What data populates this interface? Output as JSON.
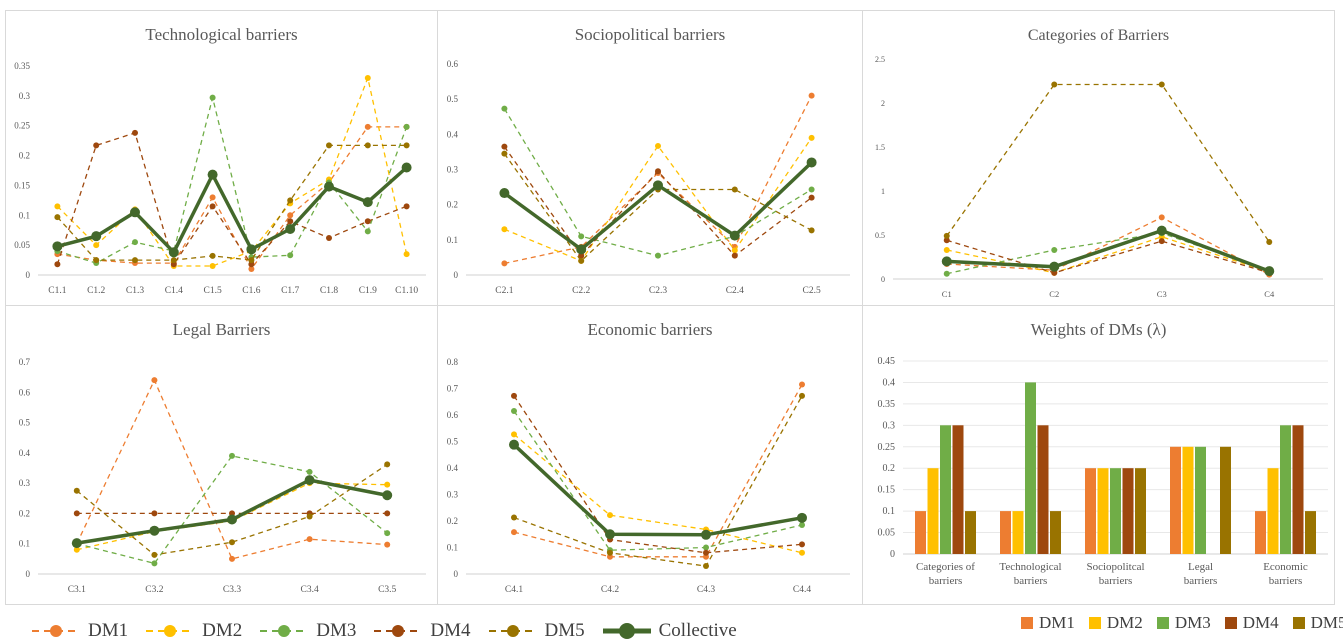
{
  "colors": {
    "DM1": "#ED7D31",
    "DM2": "#FFC000",
    "DM3": "#70AD47",
    "DM4": "#9E480E",
    "DM5": "#997300",
    "Collective": "#43682B"
  },
  "legend": {
    "series": [
      "DM1",
      "DM2",
      "DM3",
      "DM4",
      "DM5",
      "Collective"
    ],
    "bar_series": [
      "DM1",
      "DM2",
      "DM3",
      "DM4",
      "DM5"
    ]
  },
  "chart_data": [
    {
      "id": "tech",
      "type": "line",
      "title": "Technological barriers",
      "categories": [
        "C1.1",
        "C1.2",
        "C1.3",
        "C1.4",
        "C1.5",
        "C1.6",
        "C1.7",
        "C1.8",
        "C1.9",
        "C1.10"
      ],
      "yticks": [
        "0",
        "0.05",
        "0.1",
        "0.15",
        "0.2",
        "0.25",
        "0.3",
        "0.35"
      ],
      "ylim": [
        0,
        0.35
      ],
      "series": [
        {
          "name": "DM1",
          "values": [
            0.035,
            0.025,
            0.02,
            0.02,
            0.13,
            0.01,
            0.1,
            0.155,
            0.248,
            0.248
          ]
        },
        {
          "name": "DM2",
          "values": [
            0.115,
            0.05,
            0.11,
            0.015,
            0.015,
            0.04,
            0.12,
            0.16,
            0.33,
            0.035
          ]
        },
        {
          "name": "DM3",
          "values": [
            0.04,
            0.02,
            0.055,
            0.04,
            0.297,
            0.03,
            0.033,
            0.155,
            0.073,
            0.248
          ]
        },
        {
          "name": "DM4",
          "values": [
            0.018,
            0.217,
            0.238,
            0.018,
            0.115,
            0.018,
            0.09,
            0.062,
            0.09,
            0.115
          ]
        },
        {
          "name": "DM5",
          "values": [
            0.097,
            0.025,
            0.025,
            0.025,
            0.032,
            0.025,
            0.125,
            0.217,
            0.217,
            0.217
          ]
        },
        {
          "name": "Collective",
          "values": [
            0.048,
            0.065,
            0.105,
            0.038,
            0.168,
            0.043,
            0.077,
            0.148,
            0.122,
            0.18
          ]
        }
      ]
    },
    {
      "id": "socio",
      "type": "line",
      "title": "Sociopolitical barriers",
      "categories": [
        "C2.1",
        "C2.2",
        "C2.3",
        "C2.4",
        "C2.5"
      ],
      "yticks": [
        "0",
        "0.1",
        "0.2",
        "0.3",
        "0.4",
        "0.5",
        "0.6"
      ],
      "ylim": [
        0,
        0.6
      ],
      "series": [
        {
          "name": "DM1",
          "values": [
            0.033,
            0.08,
            0.29,
            0.08,
            0.51
          ]
        },
        {
          "name": "DM2",
          "values": [
            0.13,
            0.04,
            0.367,
            0.07,
            0.39
          ]
        },
        {
          "name": "DM3",
          "values": [
            0.473,
            0.11,
            0.055,
            0.11,
            0.243
          ]
        },
        {
          "name": "DM4",
          "values": [
            0.365,
            0.055,
            0.295,
            0.055,
            0.22
          ]
        },
        {
          "name": "DM5",
          "values": [
            0.345,
            0.04,
            0.243,
            0.243,
            0.127
          ]
        },
        {
          "name": "Collective",
          "values": [
            0.233,
            0.073,
            0.255,
            0.112,
            0.32
          ]
        }
      ]
    },
    {
      "id": "cat",
      "type": "line",
      "title": "Categories of Barriers",
      "categories": [
        "C1",
        "C2",
        "C3",
        "C4"
      ],
      "yticks": [
        "0",
        "0.5",
        "1",
        "1.5",
        "2",
        "2.5"
      ],
      "ylim": [
        0,
        2.5
      ],
      "series": [
        {
          "name": "DM1",
          "values": [
            0.17,
            0.1,
            0.7,
            0.05
          ]
        },
        {
          "name": "DM2",
          "values": [
            0.33,
            0.07,
            0.48,
            0.08
          ]
        },
        {
          "name": "DM3",
          "values": [
            0.06,
            0.33,
            0.52,
            0.1
          ]
        },
        {
          "name": "DM4",
          "values": [
            0.44,
            0.07,
            0.43,
            0.07
          ]
        },
        {
          "name": "DM5",
          "values": [
            0.49,
            2.21,
            2.21,
            0.42
          ]
        },
        {
          "name": "Collective",
          "values": [
            0.2,
            0.14,
            0.55,
            0.09
          ]
        }
      ]
    },
    {
      "id": "legal",
      "type": "line",
      "title": "Legal Barriers",
      "categories": [
        "C3.1",
        "C3.2",
        "C3.3",
        "C3.4",
        "C3.5"
      ],
      "yticks": [
        "0",
        "0.1",
        "0.2",
        "0.3",
        "0.4",
        "0.5",
        "0.6",
        "0.7"
      ],
      "ylim": [
        0,
        0.7
      ],
      "series": [
        {
          "name": "DM1",
          "values": [
            0.1,
            0.64,
            0.05,
            0.115,
            0.097
          ]
        },
        {
          "name": "DM2",
          "values": [
            0.08,
            0.14,
            0.175,
            0.3,
            0.295
          ]
        },
        {
          "name": "DM3",
          "values": [
            0.1,
            0.035,
            0.39,
            0.337,
            0.135
          ]
        },
        {
          "name": "DM4",
          "values": [
            0.2,
            0.2,
            0.2,
            0.2,
            0.2
          ]
        },
        {
          "name": "DM5",
          "values": [
            0.275,
            0.063,
            0.105,
            0.19,
            0.362
          ]
        },
        {
          "name": "Collective",
          "values": [
            0.102,
            0.143,
            0.18,
            0.31,
            0.26
          ]
        }
      ]
    },
    {
      "id": "econ",
      "type": "line",
      "title": "Economic barriers",
      "categories": [
        "C4.1",
        "C4.2",
        "C4.3",
        "C4.4"
      ],
      "yticks": [
        "0",
        "0.1",
        "0.2",
        "0.3",
        "0.4",
        "0.5",
        "0.6",
        "0.7",
        "0.8"
      ],
      "ylim": [
        0,
        0.8
      ],
      "series": [
        {
          "name": "DM1",
          "values": [
            0.158,
            0.065,
            0.065,
            0.715
          ]
        },
        {
          "name": "DM2",
          "values": [
            0.527,
            0.222,
            0.168,
            0.08
          ]
        },
        {
          "name": "DM3",
          "values": [
            0.615,
            0.09,
            0.1,
            0.185
          ]
        },
        {
          "name": "DM4",
          "values": [
            0.672,
            0.13,
            0.08,
            0.112
          ]
        },
        {
          "name": "DM5",
          "values": [
            0.213,
            0.08,
            0.03,
            0.672
          ]
        },
        {
          "name": "Collective",
          "values": [
            0.488,
            0.15,
            0.148,
            0.212
          ]
        }
      ]
    },
    {
      "id": "weights",
      "type": "bar",
      "title": "Weights of DMs (λ)",
      "categories": [
        "Categories of barriers",
        "Technological barriers",
        "Sociopolitcal barriers",
        "Legal barriers",
        "Economic barriers"
      ],
      "yticks": [
        "0",
        "0.05",
        "0.1",
        "0.15",
        "0.2",
        "0.25",
        "0.3",
        "0.35",
        "0.4",
        "0.45"
      ],
      "ylim": [
        0,
        0.45
      ],
      "series": [
        {
          "name": "DM1",
          "values": [
            0.1,
            0.1,
            0.2,
            0.25,
            0.1
          ]
        },
        {
          "name": "DM2",
          "values": [
            0.2,
            0.1,
            0.2,
            0.25,
            0.2
          ]
        },
        {
          "name": "DM3",
          "values": [
            0.3,
            0.4,
            0.2,
            0.25,
            0.3
          ]
        },
        {
          "name": "DM4",
          "values": [
            0.3,
            0.3,
            0.2,
            0,
            0.3
          ]
        },
        {
          "name": "DM5",
          "values": [
            0.1,
            0.1,
            0.2,
            0.25,
            0.1
          ]
        }
      ]
    }
  ]
}
